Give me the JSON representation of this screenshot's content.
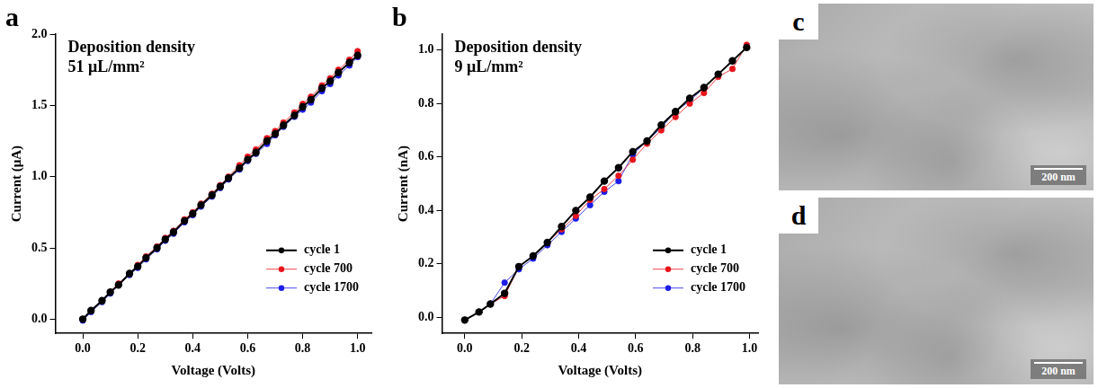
{
  "chart_data": [
    {
      "type": "line",
      "panel": "a",
      "annotations": [
        "Deposition density",
        "51 μL/mm²"
      ],
      "x_label": "Voltage (Volts)",
      "y_label": "Current (μA)",
      "x": [
        0.0,
        0.03,
        0.07,
        0.1,
        0.13,
        0.17,
        0.2,
        0.23,
        0.27,
        0.3,
        0.33,
        0.37,
        0.4,
        0.43,
        0.47,
        0.5,
        0.53,
        0.57,
        0.6,
        0.63,
        0.67,
        0.7,
        0.73,
        0.77,
        0.8,
        0.83,
        0.87,
        0.9,
        0.93,
        0.97,
        1.0
      ],
      "series": [
        {
          "name": "cycle 1",
          "color": "#000000",
          "marker": "circle",
          "line_style": "solid",
          "values": [
            0.0,
            0.06,
            0.13,
            0.19,
            0.24,
            0.32,
            0.37,
            0.43,
            0.5,
            0.56,
            0.61,
            0.69,
            0.74,
            0.8,
            0.87,
            0.93,
            0.99,
            1.06,
            1.12,
            1.17,
            1.25,
            1.3,
            1.36,
            1.43,
            1.49,
            1.54,
            1.62,
            1.67,
            1.73,
            1.8,
            1.85
          ]
        },
        {
          "name": "cycle 700",
          "color": "#e8141c",
          "marker": "circle",
          "line_style": "solid",
          "values": [
            0.0,
            0.06,
            0.13,
            0.19,
            0.25,
            0.32,
            0.38,
            0.44,
            0.51,
            0.57,
            0.62,
            0.7,
            0.75,
            0.81,
            0.88,
            0.94,
            1.0,
            1.08,
            1.14,
            1.19,
            1.27,
            1.32,
            1.38,
            1.45,
            1.51,
            1.56,
            1.64,
            1.69,
            1.75,
            1.82,
            1.88
          ]
        },
        {
          "name": "cycle 1700",
          "color": "#1c1ce8",
          "marker": "circle",
          "line_style": "solid",
          "values": [
            -0.01,
            0.05,
            0.12,
            0.18,
            0.24,
            0.31,
            0.36,
            0.42,
            0.49,
            0.55,
            0.6,
            0.68,
            0.73,
            0.79,
            0.86,
            0.92,
            0.98,
            1.05,
            1.11,
            1.16,
            1.23,
            1.29,
            1.35,
            1.42,
            1.47,
            1.52,
            1.6,
            1.65,
            1.71,
            1.78,
            1.84
          ]
        }
      ],
      "xlim": [
        -0.1,
        1.05
      ],
      "xticks": [
        {
          "value": 0,
          "label": "0.0"
        },
        0.2,
        0.4,
        0.6,
        0.8,
        {
          "value": 1,
          "label": "1.0"
        }
      ],
      "ylim": [
        -0.1,
        2.0
      ],
      "yticks": [
        {
          "value": 0,
          "label": "0.0"
        },
        0.5,
        {
          "value": 1,
          "label": "1.0"
        },
        1.5,
        {
          "value": 2,
          "label": "2.0"
        }
      ],
      "grid": false,
      "legend": "lower right"
    },
    {
      "type": "line",
      "panel": "b",
      "annotations": [
        "Deposition density",
        "9 μL/mm²"
      ],
      "x_label": "Voltage (Volts)",
      "y_label": "Current (nA)",
      "x": [
        0.0,
        0.05,
        0.09,
        0.14,
        0.19,
        0.24,
        0.29,
        0.34,
        0.39,
        0.44,
        0.49,
        0.54,
        0.59,
        0.64,
        0.69,
        0.74,
        0.79,
        0.84,
        0.89,
        0.94,
        0.99
      ],
      "series": [
        {
          "name": "cycle 1",
          "color": "#000000",
          "marker": "circle",
          "line_style": "solid",
          "values": [
            -0.01,
            0.02,
            0.05,
            0.09,
            0.19,
            0.23,
            0.28,
            0.34,
            0.4,
            0.45,
            0.51,
            0.56,
            0.62,
            0.66,
            0.72,
            0.77,
            0.82,
            0.86,
            0.91,
            0.96,
            1.01
          ]
        },
        {
          "name": "cycle 700",
          "color": "#e8141c",
          "marker": "circle",
          "line_style": "solid",
          "values": [
            -0.01,
            0.02,
            0.05,
            0.08,
            0.19,
            0.23,
            0.28,
            0.33,
            0.38,
            0.44,
            0.48,
            0.53,
            0.59,
            0.65,
            0.7,
            0.75,
            0.8,
            0.84,
            0.9,
            0.93,
            1.02
          ]
        },
        {
          "name": "cycle 1700",
          "color": "#1c1ce8",
          "marker": "circle",
          "line_style": "solid",
          "values": [
            -0.01,
            0.02,
            0.05,
            0.13,
            0.18,
            0.22,
            0.27,
            0.32,
            0.37,
            0.42,
            0.47,
            0.51,
            0.61,
            0.66,
            0.71,
            0.77,
            0.81,
            0.86,
            0.91,
            0.96,
            1.01
          ]
        }
      ],
      "xlim": [
        -0.08,
        1.03
      ],
      "xticks": [
        {
          "value": 0,
          "label": "0.0"
        },
        0.2,
        0.4,
        0.6,
        0.8,
        {
          "value": 1,
          "label": "1.0"
        }
      ],
      "ylim": [
        -0.06,
        1.06
      ],
      "yticks": [
        {
          "value": 0,
          "label": "0.0"
        },
        0.2,
        0.4,
        0.6,
        0.8,
        {
          "value": 1,
          "label": "1.0"
        }
      ],
      "grid": false,
      "legend": "lower right"
    }
  ],
  "images": [
    {
      "panel": "c",
      "scale_bar": "200 nm"
    },
    {
      "panel": "d",
      "scale_bar": "200 nm"
    }
  ]
}
